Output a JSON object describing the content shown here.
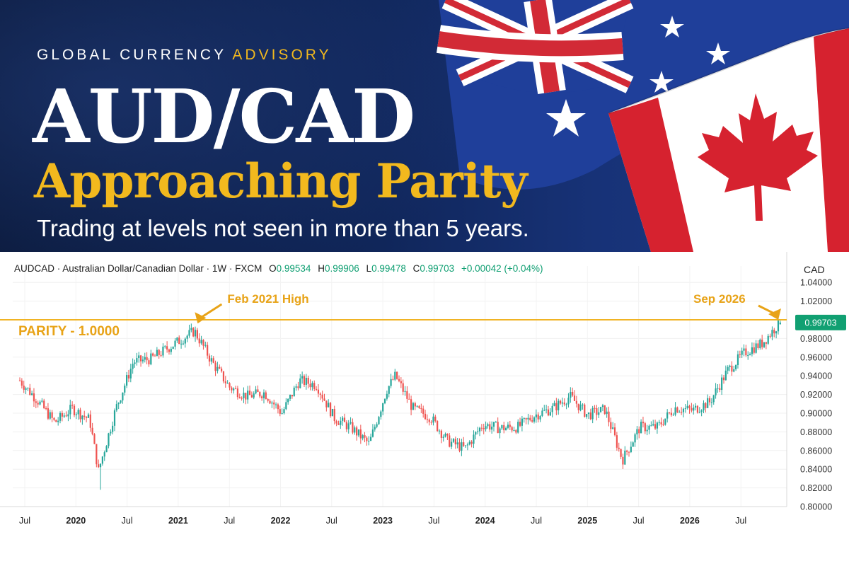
{
  "header": {
    "brand_part1": "GLOBAL CURRENCY",
    "brand_part2": "ADVISORY",
    "title": "AUD/CAD",
    "subtitle": "Approaching Parity",
    "tagline": "Trading at levels not seen in more than 5 years."
  },
  "quote_bar": {
    "symbol": "AUDCAD · Australian Dollar/Canadian Dollar · 1W · FXCM",
    "open_label": "O",
    "open": "0.99534",
    "high_label": "H",
    "high": "0.99906",
    "low_label": "L",
    "low": "0.99478",
    "close_label": "C",
    "close": "0.99703",
    "change": "+0.00042 (+0.04%)"
  },
  "colors": {
    "up": "#26a69a",
    "down": "#ef5350",
    "accent": "#f2b91e",
    "annotation": "#e8a317",
    "parity_line": "#f0b323",
    "price_tag": "#11a072"
  },
  "chart_data": {
    "type": "candlestick",
    "timeframe": "1W",
    "y_axis_label": "CAD",
    "ylim": [
      0.8,
      1.05
    ],
    "y_ticks": [
      "1.04000",
      "1.02000",
      "1.00000",
      "0.98000",
      "0.96000",
      "0.94000",
      "0.92000",
      "0.90000",
      "0.88000",
      "0.86000",
      "0.84000",
      "0.82000",
      "0.80000"
    ],
    "x_ticks": [
      "Jul",
      "2020",
      "Jul",
      "2021",
      "Jul",
      "2022",
      "Jul",
      "2023",
      "Jul",
      "2024",
      "Jul",
      "2025",
      "Jul",
      "2026",
      "Jul"
    ],
    "x_tick_bold": [
      false,
      true,
      false,
      true,
      false,
      true,
      false,
      true,
      false,
      true,
      false,
      true,
      false,
      true,
      false
    ],
    "x_start": "2019-06",
    "x_end": "2026-09",
    "last_price": "0.99703",
    "parity_level": 1.0,
    "parity_label": "PARITY - 1.0000",
    "annotations": [
      {
        "text": "Feb 2021 High",
        "date": "2021-02",
        "value": 0.993
      },
      {
        "text": "Sep 2026",
        "date": "2026-09",
        "value": 0.997
      }
    ],
    "weekly_close_path": [
      [
        "2019-06",
        0.935
      ],
      [
        "2019-08",
        0.914
      ],
      [
        "2019-10",
        0.89
      ],
      [
        "2019-12",
        0.905
      ],
      [
        "2020-02",
        0.893
      ],
      [
        "2020-03",
        0.838
      ],
      [
        "2020-05",
        0.905
      ],
      [
        "2020-07",
        0.955
      ],
      [
        "2020-09",
        0.958
      ],
      [
        "2020-11",
        0.97
      ],
      [
        "2021-02",
        0.988
      ],
      [
        "2021-04",
        0.955
      ],
      [
        "2021-06",
        0.928
      ],
      [
        "2021-08",
        0.918
      ],
      [
        "2021-10",
        0.922
      ],
      [
        "2021-12",
        0.9
      ],
      [
        "2022-02",
        0.935
      ],
      [
        "2022-04",
        0.93
      ],
      [
        "2022-06",
        0.895
      ],
      [
        "2022-08",
        0.884
      ],
      [
        "2022-10",
        0.867
      ],
      [
        "2022-12",
        0.925
      ],
      [
        "2023-01",
        0.94
      ],
      [
        "2023-03",
        0.905
      ],
      [
        "2023-05",
        0.896
      ],
      [
        "2023-07",
        0.87
      ],
      [
        "2023-09",
        0.862
      ],
      [
        "2023-11",
        0.888
      ],
      [
        "2024-01",
        0.884
      ],
      [
        "2024-03",
        0.885
      ],
      [
        "2024-05",
        0.898
      ],
      [
        "2024-07",
        0.905
      ],
      [
        "2024-09",
        0.918
      ],
      [
        "2024-11",
        0.898
      ],
      [
        "2025-01",
        0.904
      ],
      [
        "2025-03",
        0.85
      ],
      [
        "2025-05",
        0.885
      ],
      [
        "2025-07",
        0.885
      ],
      [
        "2025-09",
        0.906
      ],
      [
        "2025-11",
        0.903
      ],
      [
        "2026-01",
        0.912
      ],
      [
        "2026-03",
        0.945
      ],
      [
        "2026-05",
        0.965
      ],
      [
        "2026-07",
        0.975
      ],
      [
        "2026-09",
        0.997
      ]
    ]
  }
}
